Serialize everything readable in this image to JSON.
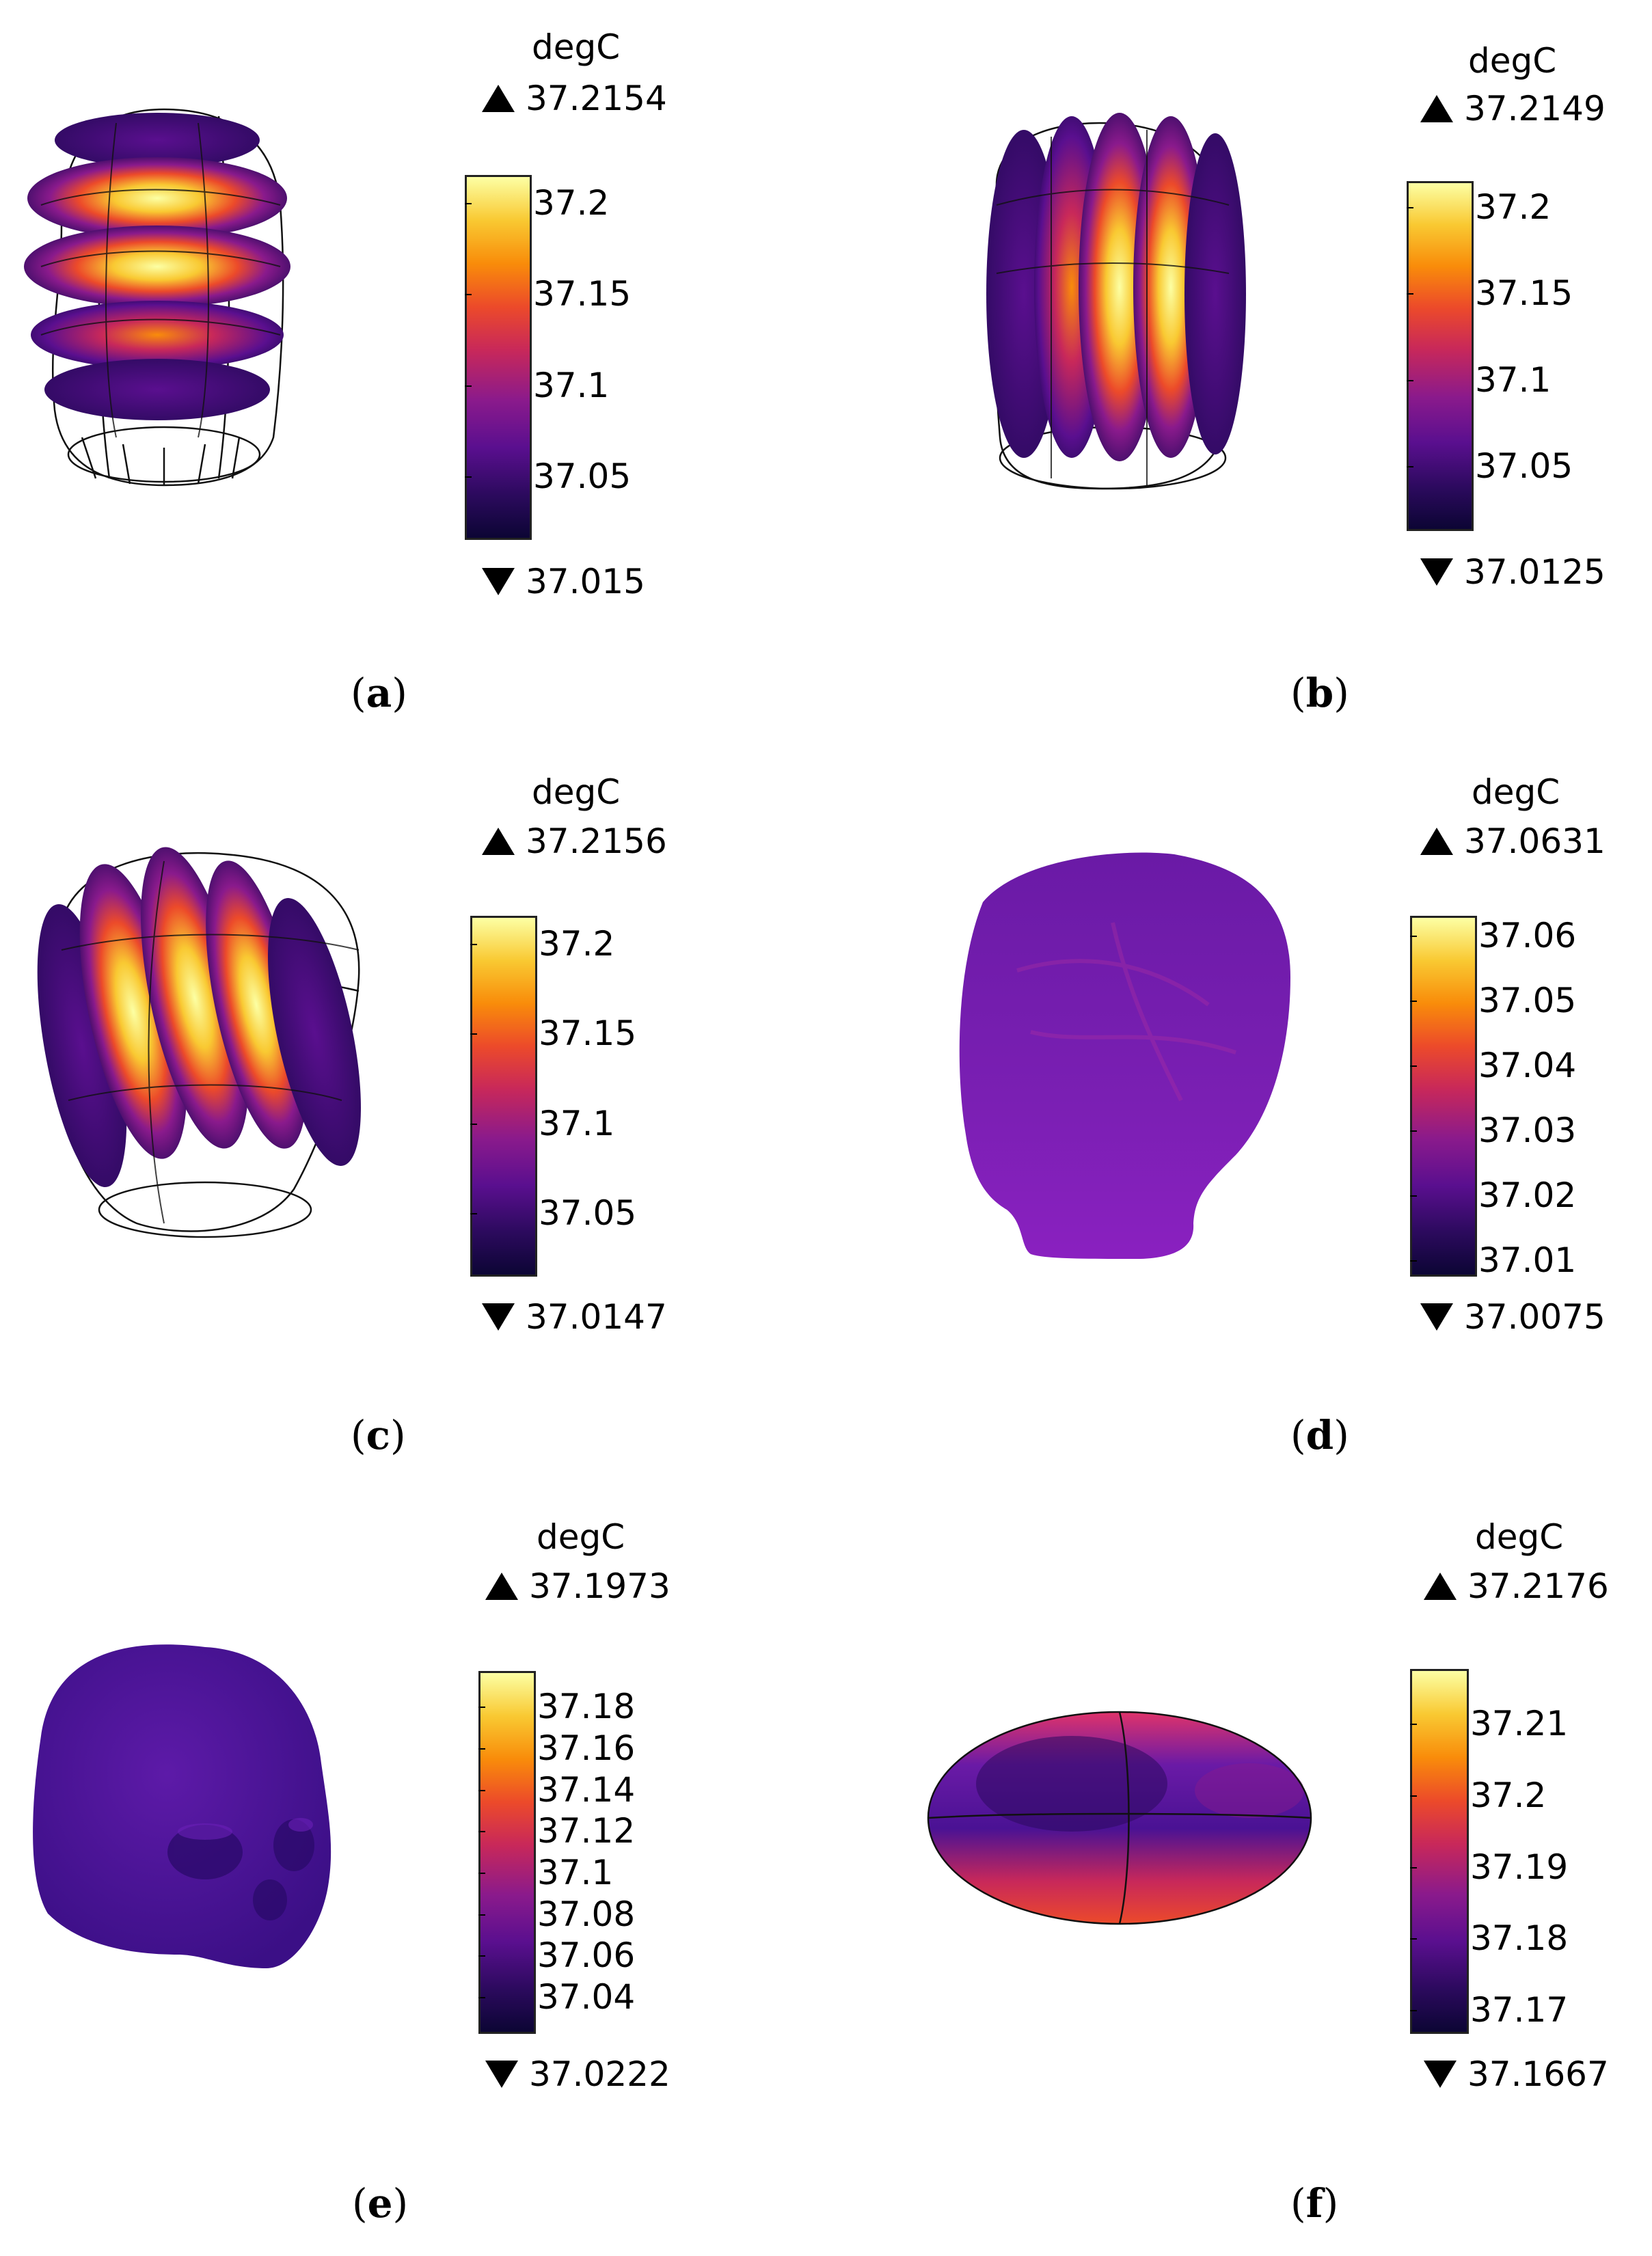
{
  "panels": [
    {
      "id": "a",
      "caption_letter": "a",
      "unit": "degC",
      "max": "37.2154",
      "min": "37.015",
      "ticks": [
        "37.2",
        "37.15",
        "37.1",
        "37.05"
      ]
    },
    {
      "id": "b",
      "caption_letter": "b",
      "unit": "degC",
      "max": "37.2149",
      "min": "37.0125",
      "ticks": [
        "37.2",
        "37.15",
        "37.1",
        "37.05"
      ]
    },
    {
      "id": "c",
      "caption_letter": "c",
      "unit": "degC",
      "max": "37.2156",
      "min": "37.0147",
      "ticks": [
        "37.2",
        "37.15",
        "37.1",
        "37.05"
      ]
    },
    {
      "id": "d",
      "caption_letter": "d",
      "unit": "degC",
      "max": "37.0631",
      "min": "37.0075",
      "ticks": [
        "37.06",
        "37.05",
        "37.04",
        "37.03",
        "37.02",
        "37.01"
      ]
    },
    {
      "id": "e",
      "caption_letter": "e",
      "unit": "degC",
      "max": "37.1973",
      "min": "37.0222",
      "ticks": [
        "37.18",
        "37.16",
        "37.14",
        "37.12",
        "37.1",
        "37.08",
        "37.06",
        "37.04"
      ]
    },
    {
      "id": "f",
      "caption_letter": "f",
      "unit": "degC",
      "max": "37.2176",
      "min": "37.1667",
      "ticks": [
        "37.21",
        "37.2",
        "37.19",
        "37.18",
        "37.17"
      ]
    }
  ],
  "colors": {
    "colormap": [
      "#0c0534",
      "#2c0a5e",
      "#5a0f8f",
      "#8a1a8c",
      "#c8285a",
      "#ec4a2a",
      "#f98c0a",
      "#f9c932",
      "#fcffa4"
    ]
  }
}
